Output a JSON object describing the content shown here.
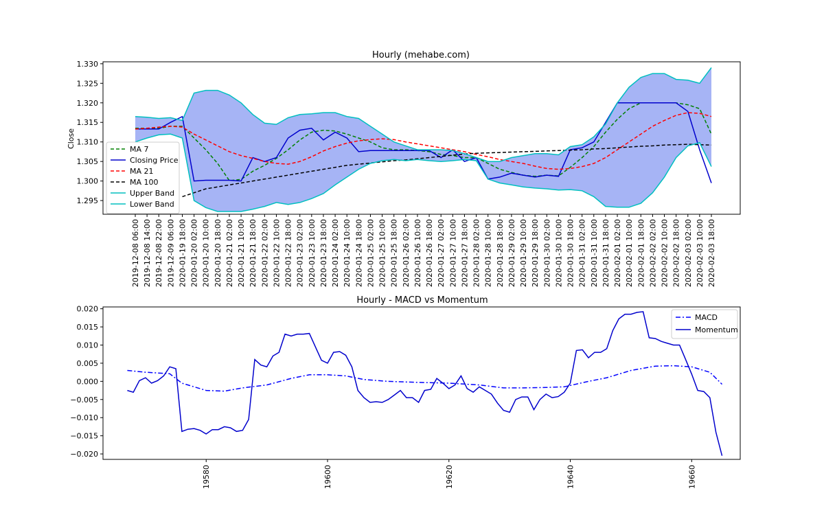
{
  "chart_data": [
    {
      "type": "line",
      "title": "Hourly (mehabe.com)",
      "xlabel": "",
      "ylabel": "Close",
      "ylim": [
        1.2915,
        1.3305
      ],
      "yticks": [
        "1.295",
        "1.300",
        "1.305",
        "1.310",
        "1.315",
        "1.320",
        "1.325",
        "1.330"
      ],
      "categories": [
        "2019-12-08 06:00",
        "2019-12-08 14:00",
        "2019-12-08 22:00",
        "2019-12-09 06:00",
        "2020-01-19 18:00",
        "2020-01-20 02:00",
        "2020-01-20 10:00",
        "2020-01-20 18:00",
        "2020-01-21 02:00",
        "2020-01-21 10:00",
        "2020-01-21 18:00",
        "2020-01-22 02:00",
        "2020-01-22 10:00",
        "2020-01-22 18:00",
        "2020-01-23 02:00",
        "2020-01-23 10:00",
        "2020-01-23 18:00",
        "2020-01-24 02:00",
        "2020-01-24 10:00",
        "2020-01-24 18:00",
        "2020-01-25 02:00",
        "2020-01-25 10:00",
        "2020-01-25 18:00",
        "2020-01-26 02:00",
        "2020-01-26 10:00",
        "2020-01-26 18:00",
        "2020-01-27 02:00",
        "2020-01-27 10:00",
        "2020-01-27 18:00",
        "2020-01-28 02:00",
        "2020-01-28 10:00",
        "2020-01-28 18:00",
        "2020-01-29 02:00",
        "2020-01-29 10:00",
        "2020-01-29 18:00",
        "2020-01-30 02:00",
        "2020-01-30 10:00",
        "2020-01-30 18:00",
        "2020-01-31 02:00",
        "2020-01-31 10:00",
        "2020-01-31 18:00",
        "2020-02-01 02:00",
        "2020-02-01 10:00",
        "2020-02-01 18:00",
        "2020-02-02 02:00",
        "2020-02-02 10:00",
        "2020-02-02 18:00",
        "2020-02-03 02:00",
        "2020-02-03 10:00",
        "2020-02-03 18:00"
      ],
      "band": {
        "upper_name": "Upper Band",
        "lower_name": "Lower Band",
        "fill_color": "#a6b4f5",
        "upper": [
          1.3165,
          1.3163,
          1.316,
          1.3162,
          1.3155,
          1.3225,
          1.3232,
          1.3232,
          1.322,
          1.32,
          1.317,
          1.3148,
          1.3145,
          1.3162,
          1.317,
          1.3172,
          1.3175,
          1.3175,
          1.3165,
          1.316,
          1.314,
          1.312,
          1.31,
          1.309,
          1.308,
          1.308,
          1.308,
          1.3078,
          1.307,
          1.306,
          1.305,
          1.305,
          1.306,
          1.3065,
          1.307,
          1.307,
          1.3067,
          1.3088,
          1.3093,
          1.3113,
          1.3146,
          1.32,
          1.324,
          1.3265,
          1.3275,
          1.3275,
          1.326,
          1.3258,
          1.325,
          1.329
        ],
        "lower": [
          1.31,
          1.311,
          1.3118,
          1.312,
          1.311,
          1.295,
          1.2932,
          1.2922,
          1.2922,
          1.2922,
          1.2928,
          1.2935,
          1.2945,
          1.294,
          1.2945,
          1.2955,
          1.2968,
          1.299,
          1.301,
          1.303,
          1.3045,
          1.3052,
          1.3055,
          1.3052,
          1.3055,
          1.3052,
          1.305,
          1.3052,
          1.3055,
          1.3052,
          1.3005,
          1.2995,
          1.299,
          1.2985,
          1.2982,
          1.298,
          1.2977,
          1.2978,
          1.2975,
          1.296,
          1.2935,
          1.2933,
          1.2933,
          1.2943,
          1.297,
          1.301,
          1.306,
          1.309,
          1.3098,
          1.3037
        ]
      },
      "series": [
        {
          "name": "MA 7",
          "color": "#008000",
          "dash": "dashed",
          "values": [
            1.3135,
            1.3135,
            1.3135,
            1.314,
            1.314,
            1.311,
            1.308,
            1.3045,
            1.3001,
            1.3004,
            1.3025,
            1.304,
            1.3058,
            1.308,
            1.3105,
            1.3125,
            1.313,
            1.3128,
            1.312,
            1.311,
            1.31,
            1.3085,
            1.308,
            1.308,
            1.3078,
            1.3075,
            1.3068,
            1.3065,
            1.306,
            1.306,
            1.3045,
            1.303,
            1.3022,
            1.3015,
            1.3012,
            1.3015,
            1.3013,
            1.3035,
            1.306,
            1.3088,
            1.3125,
            1.3158,
            1.3185,
            1.32,
            1.32,
            1.32,
            1.32,
            1.3195,
            1.3185,
            1.312
          ]
        },
        {
          "name": "Closing Price",
          "color": "#0000cc",
          "dash": "solid",
          "values": [
            1.3133,
            1.3133,
            1.3133,
            1.315,
            1.3165,
            1.3,
            1.3002,
            1.3002,
            1.3002,
            1.3,
            1.306,
            1.305,
            1.306,
            1.311,
            1.313,
            1.3135,
            1.3105,
            1.3125,
            1.311,
            1.3075,
            1.3078,
            1.3078,
            1.3078,
            1.3078,
            1.3078,
            1.3078,
            1.306,
            1.308,
            1.305,
            1.306,
            1.3005,
            1.301,
            1.302,
            1.3015,
            1.301,
            1.3015,
            1.3012,
            1.308,
            1.3085,
            1.31,
            1.315,
            1.32,
            1.32,
            1.32,
            1.32,
            1.32,
            1.32,
            1.3178,
            1.308,
            1.2995
          ]
        },
        {
          "name": "MA 21",
          "color": "#ff0000",
          "dash": "dashed",
          "values": [
            1.3133,
            1.3135,
            1.3138,
            1.314,
            1.3138,
            1.312,
            1.3105,
            1.309,
            1.3075,
            1.3065,
            1.3058,
            1.305,
            1.3045,
            1.3043,
            1.305,
            1.3062,
            1.3077,
            1.3088,
            1.3097,
            1.3103,
            1.3106,
            1.3108,
            1.3106,
            1.31,
            1.3095,
            1.309,
            1.3085,
            1.308,
            1.3075,
            1.3068,
            1.3062,
            1.3055,
            1.305,
            1.3045,
            1.3038,
            1.3032,
            1.303,
            1.3032,
            1.3037,
            1.3045,
            1.306,
            1.308,
            1.31,
            1.312,
            1.314,
            1.3155,
            1.3168,
            1.3175,
            1.3173,
            1.3165
          ]
        },
        {
          "name": "MA 100",
          "color": "#000000",
          "dash": "dashed",
          "values": [
            null,
            null,
            null,
            null,
            1.296,
            1.297,
            1.298,
            1.2985,
            1.299,
            1.2995,
            1.3,
            1.3005,
            1.301,
            1.3015,
            1.302,
            1.3025,
            1.303,
            1.3035,
            1.304,
            1.3043,
            1.3046,
            1.3049,
            1.3052,
            1.3054,
            1.3057,
            1.306,
            1.3063,
            1.3066,
            1.3069,
            1.3071,
            1.3072,
            1.3073,
            1.3074,
            1.3075,
            1.3076,
            1.3077,
            1.3078,
            1.3079,
            1.308,
            1.3082,
            1.3083,
            1.3085,
            1.3087,
            1.3089,
            1.309,
            1.3092,
            1.3093,
            1.3094,
            1.3093,
            1.3092
          ]
        },
        {
          "name": "Upper Band",
          "color": "#00bfbf",
          "dash": "solid",
          "ref": "upper"
        },
        {
          "name": "Lower Band",
          "color": "#00bfbf",
          "dash": "solid",
          "ref": "lower"
        }
      ],
      "legend_position": "lower-left"
    },
    {
      "type": "line",
      "title": "Hourly - MACD vs Momentum",
      "xlabel": "",
      "ylabel": "",
      "xlim": [
        19563,
        19668
      ],
      "ylim": [
        -0.0215,
        0.0205
      ],
      "xticks": [
        "19580",
        "19600",
        "19620",
        "19640",
        "19660"
      ],
      "yticks": [
        "−0.020",
        "−0.015",
        "−0.010",
        "−0.005",
        "0.000",
        "0.005",
        "0.010",
        "0.015",
        "0.020"
      ],
      "series": [
        {
          "name": "MACD",
          "color": "#0000ff",
          "dash": "dashdot",
          "x": [
            19567,
            19570,
            19574,
            19576,
            19580,
            19583,
            19586,
            19590,
            19594,
            19597,
            19600,
            19603,
            19606,
            19610,
            19615,
            19620,
            19625,
            19629,
            19632,
            19636,
            19639,
            19643,
            19646,
            19650,
            19654,
            19657,
            19660,
            19663,
            19665
          ],
          "y": [
            0.003,
            0.0025,
            0.0021,
            -0.0005,
            -0.0025,
            -0.0027,
            -0.0018,
            -0.001,
            0.0008,
            0.0018,
            0.0018,
            0.0015,
            0.0005,
            0.0,
            -0.0003,
            -0.0005,
            -0.001,
            -0.0018,
            -0.0018,
            -0.0017,
            -0.0015,
            0.0,
            0.001,
            0.003,
            0.0042,
            0.0043,
            0.004,
            0.0025,
            -0.0008
          ]
        },
        {
          "name": "Momentum",
          "color": "#0000cc",
          "dash": "solid",
          "x": [
            19567,
            19568,
            19569,
            19570,
            19571,
            19572,
            19573,
            19574,
            19575,
            19576,
            19577,
            19578,
            19579,
            19580,
            19581,
            19582,
            19583,
            19584,
            19585,
            19586,
            19587,
            19588,
            19589,
            19590,
            19591,
            19592,
            19593,
            19594,
            19595,
            19596,
            19597,
            19598,
            19599,
            19600,
            19601,
            19602,
            19603,
            19604,
            19605,
            19606,
            19607,
            19608,
            19609,
            19610,
            19611,
            19612,
            19613,
            19614,
            19615,
            19616,
            19617,
            19618,
            19619,
            19620,
            19621,
            19622,
            19623,
            19624,
            19625,
            19626,
            19627,
            19628,
            19629,
            19630,
            19631,
            19632,
            19633,
            19634,
            19635,
            19636,
            19637,
            19638,
            19639,
            19640,
            19641,
            19642,
            19643,
            19644,
            19645,
            19646,
            19647,
            19648,
            19649,
            19650,
            19651,
            19652,
            19653,
            19654,
            19655,
            19656,
            19657,
            19658,
            19659,
            19660,
            19661,
            19662,
            19663,
            19664,
            19665
          ],
          "y": [
            -0.0025,
            -0.003,
            0.0002,
            0.001,
            -0.0005,
            0.0002,
            0.0015,
            0.004,
            0.0035,
            -0.0138,
            -0.0132,
            -0.013,
            -0.0135,
            -0.0145,
            -0.0133,
            -0.0133,
            -0.0125,
            -0.0128,
            -0.0138,
            -0.0135,
            -0.0105,
            0.006,
            0.0045,
            0.004,
            0.007,
            0.008,
            0.013,
            0.0125,
            0.013,
            0.013,
            0.0132,
            0.0095,
            0.0058,
            0.005,
            0.008,
            0.0082,
            0.0072,
            0.004,
            -0.0025,
            -0.0045,
            -0.0058,
            -0.0056,
            -0.0058,
            -0.005,
            -0.0038,
            -0.0025,
            -0.0045,
            -0.0045,
            -0.0058,
            -0.0025,
            -0.0022,
            0.0008,
            -0.0005,
            -0.002,
            -0.001,
            0.0015,
            -0.002,
            -0.003,
            -0.0015,
            -0.0025,
            -0.0035,
            -0.006,
            -0.008,
            -0.0085,
            -0.005,
            -0.0043,
            -0.0043,
            -0.0078,
            -0.005,
            -0.0035,
            -0.0045,
            -0.0042,
            -0.003,
            -0.0005,
            0.0085,
            0.0087,
            0.0065,
            0.008,
            0.008,
            0.009,
            0.014,
            0.0172,
            0.0185,
            0.0185,
            0.019,
            0.0192,
            0.012,
            0.0118,
            0.011,
            0.0105,
            0.01,
            0.01,
            0.006,
            0.002,
            -0.0025,
            -0.0028,
            -0.0045,
            -0.014,
            -0.0205
          ]
        }
      ],
      "legend_position": "upper-right"
    }
  ]
}
